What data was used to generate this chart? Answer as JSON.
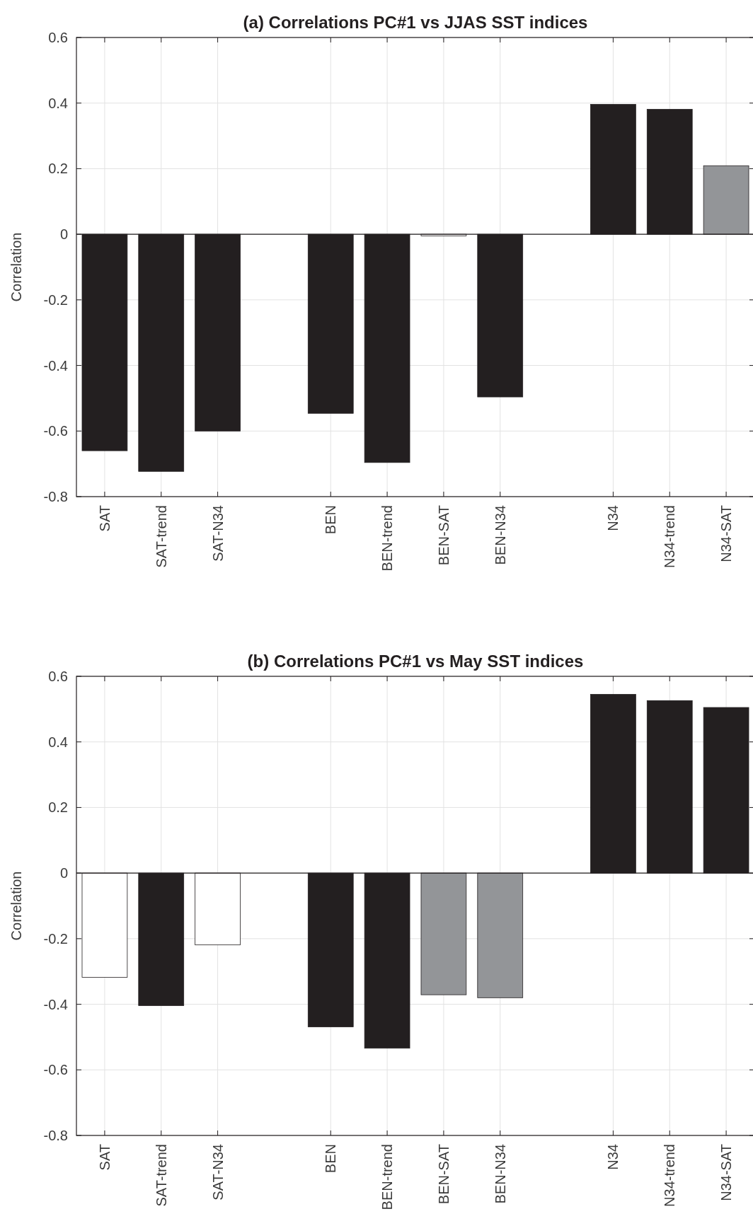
{
  "chart_data": [
    {
      "type": "bar",
      "title": "(a) Correlations PC#1 vs JJAS SST indices",
      "ylabel": "Correlation",
      "categories": [
        "SAT",
        "SAT-trend",
        "SAT-N34",
        null,
        "BEN",
        "BEN-trend",
        "BEN-SAT",
        "BEN-N34",
        null,
        "N34",
        "N34-trend",
        "N34-SAT"
      ],
      "values": [
        -0.66,
        -0.723,
        -0.6,
        null,
        -0.546,
        -0.696,
        -0.005,
        -0.496,
        null,
        0.396,
        0.381,
        0.209
      ],
      "colors": [
        "#231f20",
        "#231f20",
        "#231f20",
        null,
        "#231f20",
        "#231f20",
        "#ffffff",
        "#231f20",
        null,
        "#231f20",
        "#231f20",
        "#939598"
      ],
      "ylim": [
        -0.8,
        0.6
      ],
      "yticks": [
        -0.8,
        -0.6,
        -0.4,
        -0.2,
        0,
        0.2,
        0.4,
        0.6
      ],
      "grid": true
    },
    {
      "type": "bar",
      "title": "(b) Correlations PC#1 vs May SST indices",
      "ylabel": "Correlation",
      "categories": [
        "SAT",
        "SAT-trend",
        "SAT-N34",
        null,
        "BEN",
        "BEN-trend",
        "BEN-SAT",
        "BEN-N34",
        null,
        "N34",
        "N34-trend",
        "N34-SAT"
      ],
      "values": [
        -0.318,
        -0.404,
        -0.219,
        null,
        -0.469,
        -0.534,
        -0.371,
        -0.38,
        null,
        0.545,
        0.526,
        0.505
      ],
      "colors": [
        "#ffffff",
        "#231f20",
        "#ffffff",
        null,
        "#231f20",
        "#231f20",
        "#939598",
        "#939598",
        null,
        "#231f20",
        "#231f20",
        "#231f20"
      ],
      "ylim": [
        -0.8,
        0.6
      ],
      "yticks": [
        -0.8,
        -0.6,
        -0.4,
        -0.2,
        0,
        0.2,
        0.4,
        0.6
      ],
      "grid": true
    }
  ]
}
